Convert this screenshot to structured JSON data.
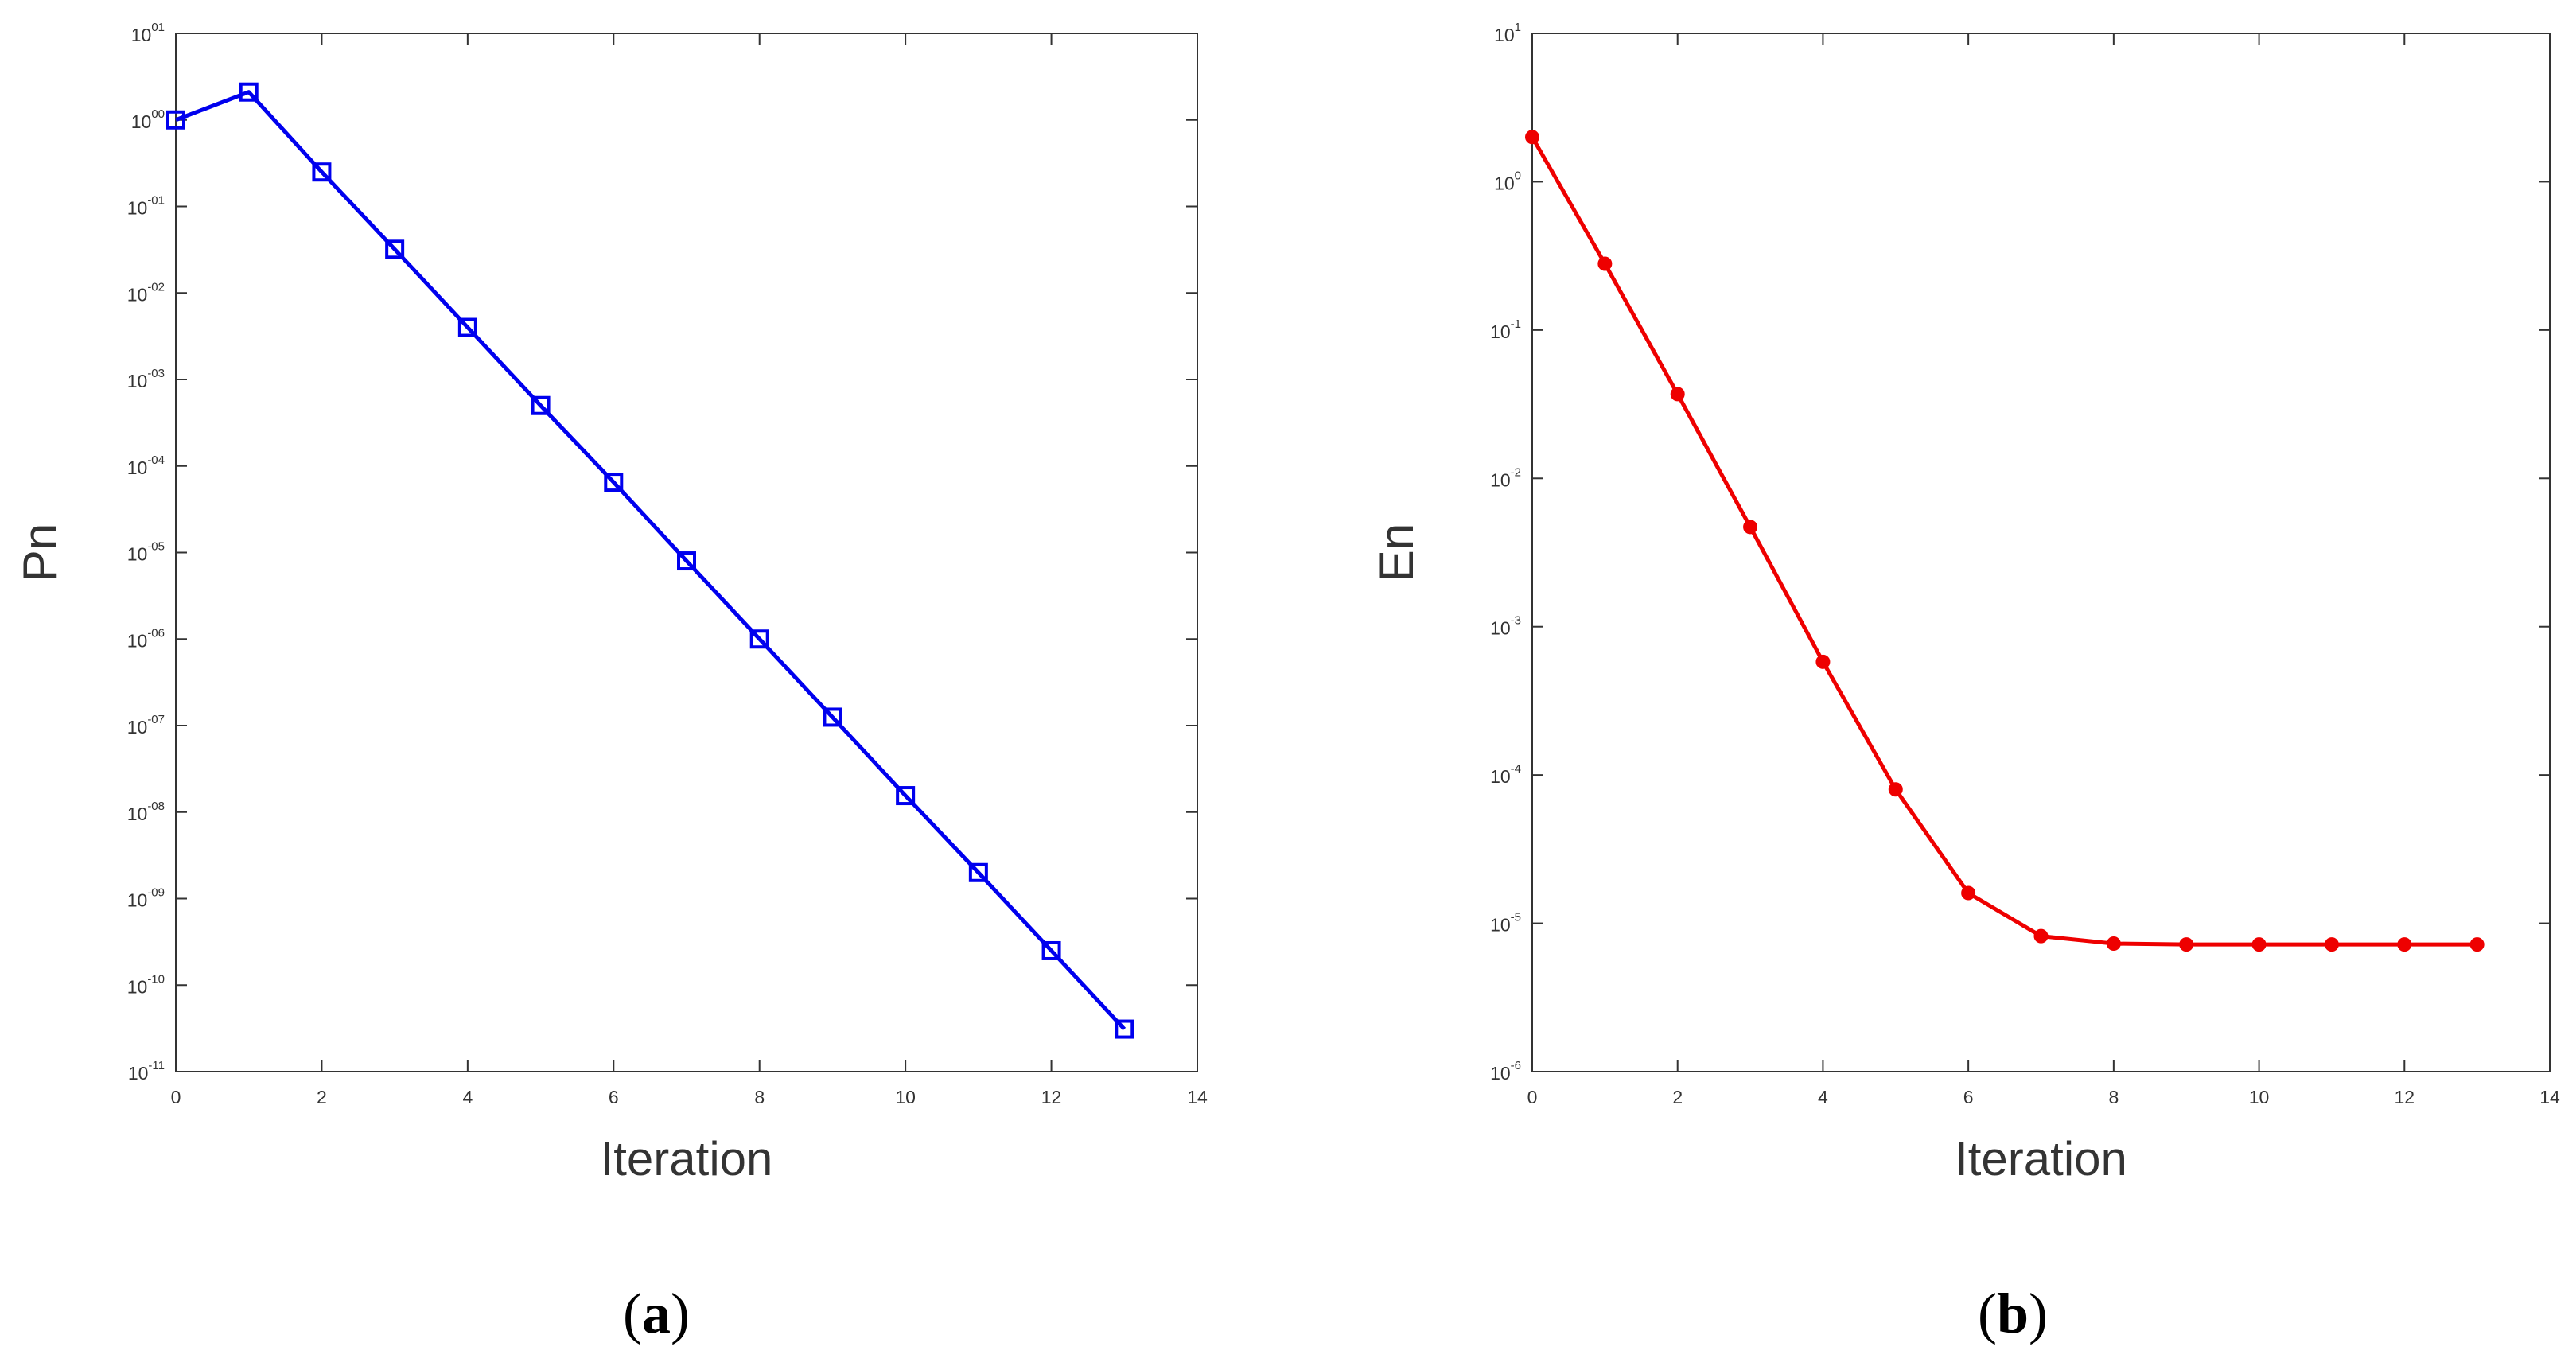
{
  "chart_data": [
    {
      "type": "line",
      "panel_label": "a",
      "title": "",
      "xlabel": "Iteration",
      "ylabel": "Pn",
      "y_scale": "log",
      "xlim": [
        0,
        14
      ],
      "ylim": [
        1e-11,
        10
      ],
      "x_ticks": [
        "0",
        "2",
        "4",
        "6",
        "8",
        "10",
        "12",
        "14"
      ],
      "y_tick_labels": [
        {
          "base": "10",
          "exp": "-11"
        },
        {
          "base": "10",
          "exp": "-10"
        },
        {
          "base": "10",
          "exp": "-09"
        },
        {
          "base": "10",
          "exp": "-08"
        },
        {
          "base": "10",
          "exp": "-07"
        },
        {
          "base": "10",
          "exp": "-06"
        },
        {
          "base": "10",
          "exp": "-05"
        },
        {
          "base": "10",
          "exp": "-04"
        },
        {
          "base": "10",
          "exp": "-03"
        },
        {
          "base": "10",
          "exp": "-02"
        },
        {
          "base": "10",
          "exp": "-01"
        },
        {
          "base": "10",
          "exp": "00"
        },
        {
          "base": "10",
          "exp": "01"
        }
      ],
      "grid": false,
      "marker": "square",
      "color": "#0000ee",
      "series": [
        {
          "x": [
            0,
            1,
            2,
            3,
            4,
            5,
            6,
            7,
            8,
            9,
            10,
            11,
            12,
            13
          ],
          "values": [
            1.0,
            2.1,
            0.25,
            0.032,
            0.004,
            0.0005,
            6.5e-05,
            8e-06,
            1e-06,
            1.25e-07,
            1.55e-08,
            2e-09,
            2.5e-10,
            3.1e-11
          ]
        }
      ]
    },
    {
      "type": "line",
      "panel_label": "b",
      "title": "",
      "xlabel": "Iteration",
      "ylabel": "En",
      "y_scale": "log",
      "xlim": [
        0,
        14
      ],
      "ylim": [
        1e-06,
        10
      ],
      "x_ticks": [
        "0",
        "2",
        "4",
        "6",
        "8",
        "10",
        "12",
        "14"
      ],
      "y_tick_labels": [
        {
          "base": "10",
          "exp": "-6"
        },
        {
          "base": "10",
          "exp": "-5"
        },
        {
          "base": "10",
          "exp": "-4"
        },
        {
          "base": "10",
          "exp": "-3"
        },
        {
          "base": "10",
          "exp": "-2"
        },
        {
          "base": "10",
          "exp": "-1"
        },
        {
          "base": "10",
          "exp": "0"
        },
        {
          "base": "10",
          "exp": "1"
        }
      ],
      "grid": false,
      "marker": "circle",
      "color": "#ee0000",
      "series": [
        {
          "x": [
            0,
            1,
            2,
            3,
            4,
            5,
            6,
            7,
            8,
            9,
            10,
            11,
            12,
            13
          ],
          "values": [
            2.0,
            0.28,
            0.037,
            0.0047,
            0.00058,
            8e-05,
            1.6e-05,
            8.2e-06,
            7.3e-06,
            7.2e-06,
            7.2e-06,
            7.2e-06,
            7.2e-06,
            7.2e-06
          ]
        }
      ]
    }
  ]
}
